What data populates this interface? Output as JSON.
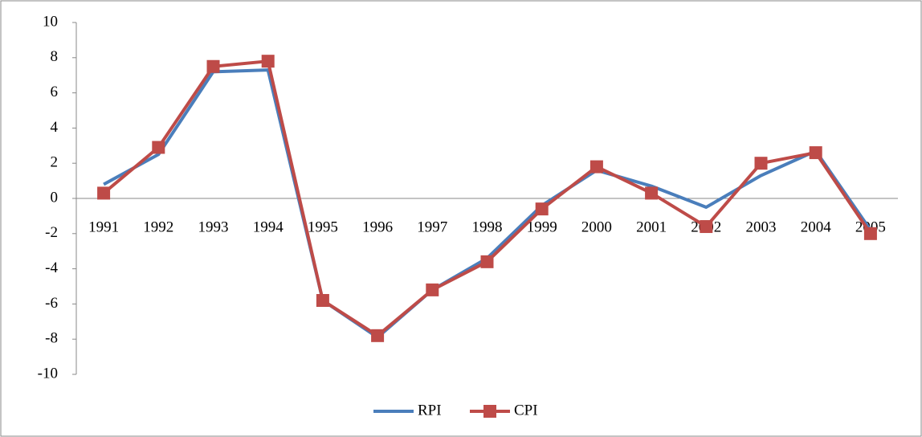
{
  "chart_data": {
    "type": "line",
    "categories": [
      "1991",
      "1992",
      "1993",
      "1994",
      "1995",
      "1996",
      "1997",
      "1998",
      "1999",
      "2000",
      "2001",
      "2002",
      "2003",
      "2004",
      "2005"
    ],
    "series": [
      {
        "name": "RPI",
        "color": "#4a7ebb",
        "values": [
          0.8,
          2.5,
          7.2,
          7.3,
          -5.8,
          -7.9,
          -5.2,
          -3.4,
          -0.4,
          1.6,
          0.7,
          -0.5,
          1.3,
          2.7,
          -1.8
        ]
      },
      {
        "name": "CPI",
        "color": "#be4b48",
        "marker": "square",
        "values": [
          0.3,
          2.9,
          7.5,
          7.8,
          -5.8,
          -7.8,
          -5.2,
          -3.6,
          -0.6,
          1.8,
          0.3,
          -1.6,
          2.0,
          2.6,
          -2.0
        ]
      }
    ],
    "ylim": [
      -10,
      10
    ],
    "yticks": [
      -10,
      -8,
      -6,
      -4,
      -2,
      0,
      2,
      4,
      6,
      8,
      10
    ],
    "legend": "bottom"
  }
}
